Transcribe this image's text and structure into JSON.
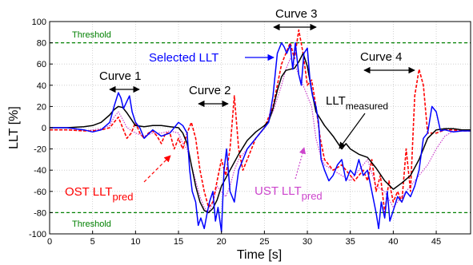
{
  "chart_data": {
    "type": "line",
    "xlabel": "Time [s]",
    "ylabel": "LLT [%]",
    "xlim": [
      0,
      49
    ],
    "ylim": [
      -100,
      100
    ],
    "xticks": [
      0,
      5,
      10,
      15,
      20,
      25,
      30,
      35,
      40,
      45
    ],
    "yticks": [
      100,
      80,
      60,
      40,
      20,
      0,
      -20,
      -40,
      -60,
      -80,
      -100
    ],
    "grid": true,
    "thresholds": [
      {
        "label": "Threshold",
        "value": 80
      },
      {
        "label": "Threshold",
        "value": -80
      }
    ],
    "series": [
      {
        "name": "LLT measured",
        "color": "#000000",
        "style": "solid",
        "x": [
          0,
          2,
          4,
          5,
          6,
          7,
          7.5,
          8,
          8.5,
          9,
          9.5,
          10,
          11,
          12,
          13,
          14,
          15,
          15.5,
          16,
          16.5,
          17,
          17.5,
          18,
          18.5,
          19,
          19.5,
          20,
          21,
          22,
          23,
          24,
          25,
          25.5,
          26,
          26.5,
          27,
          27.5,
          28,
          28.5,
          29,
          29.5,
          30,
          30.5,
          31,
          32,
          33,
          34,
          34.5,
          35,
          36,
          37,
          38,
          39,
          40,
          41,
          42,
          43,
          44,
          45,
          46,
          47,
          48,
          49
        ],
        "y": [
          0,
          0,
          1,
          2,
          5,
          12,
          17,
          20,
          19,
          14,
          8,
          2,
          1,
          2,
          2,
          1,
          0,
          -5,
          -15,
          -35,
          -55,
          -70,
          -78,
          -80,
          -76,
          -68,
          -55,
          -40,
          -25,
          -12,
          -4,
          2,
          6,
          18,
          35,
          48,
          54,
          55,
          56,
          62,
          70,
          58,
          35,
          15,
          2,
          -8,
          -20,
          -15,
          -20,
          -25,
          -28,
          -38,
          -50,
          -58,
          -52,
          -45,
          -30,
          -10,
          -2,
          -1,
          -1,
          -2,
          -2
        ]
      },
      {
        "name": "Selected LLT",
        "color": "#0000ff",
        "style": "solid",
        "x": [
          0,
          2,
          4,
          5,
          6,
          7,
          7.5,
          8,
          8.3,
          8.6,
          9,
          9.3,
          9.6,
          10,
          10.5,
          11,
          12,
          13,
          14,
          15,
          15.5,
          16,
          16.3,
          16.6,
          17,
          17.3,
          17.6,
          18,
          18.3,
          18.6,
          19,
          19.3,
          19.6,
          20,
          20.3,
          20.6,
          21,
          21.5,
          22,
          23,
          24,
          25,
          25.5,
          26,
          26.5,
          27,
          27.3,
          27.6,
          28,
          28.3,
          28.6,
          29,
          29.3,
          29.6,
          30,
          30.3,
          30.6,
          31,
          31.3,
          31.6,
          32,
          32.5,
          33,
          33.5,
          34,
          34.5,
          35,
          35.5,
          36,
          36.5,
          37,
          37.5,
          38,
          38.3,
          38.6,
          39,
          39.3,
          39.6,
          40,
          40.5,
          41,
          41.5,
          42,
          42.5,
          43,
          43.5,
          44,
          44.5,
          45,
          45.5,
          46,
          47,
          48,
          49
        ],
        "y": [
          0,
          0,
          -2,
          -4,
          -2,
          5,
          20,
          33,
          28,
          18,
          25,
          30,
          15,
          5,
          0,
          -10,
          -2,
          -8,
          -5,
          5,
          2,
          -5,
          -40,
          -60,
          -70,
          -92,
          -85,
          -95,
          -82,
          -70,
          -60,
          -88,
          -75,
          -98,
          -40,
          -20,
          -60,
          -70,
          -40,
          -20,
          -10,
          0,
          5,
          30,
          70,
          80,
          76,
          70,
          78,
          55,
          80,
          50,
          40,
          70,
          75,
          45,
          30,
          20,
          5,
          -30,
          -40,
          -50,
          -45,
          -35,
          -30,
          -50,
          -40,
          -45,
          -30,
          -45,
          -40,
          -60,
          -80,
          -95,
          -70,
          -85,
          -60,
          -88,
          -78,
          -65,
          -70,
          -60,
          -65,
          -55,
          -40,
          -10,
          -5,
          20,
          15,
          -3,
          -2,
          -4,
          -3,
          -3
        ]
      },
      {
        "name": "OST LLT pred",
        "color": "#ff0000",
        "style": "dashed",
        "x": [
          0,
          2,
          4,
          5,
          6,
          7,
          7.5,
          8,
          8.5,
          9,
          9.5,
          10,
          10.5,
          11,
          11.5,
          12,
          12.5,
          13,
          13.5,
          14,
          14.5,
          15,
          15.5,
          16,
          16.5,
          17,
          17.5,
          18,
          18.5,
          19,
          19.5,
          20,
          20.5,
          21,
          21.5,
          22,
          22.5,
          23,
          24,
          25,
          25.5,
          26,
          26.5,
          27,
          27.5,
          28,
          28.5,
          29,
          29.5,
          30,
          30.5,
          31,
          31.5,
          32,
          33,
          34,
          34.5,
          35,
          35.5,
          36,
          36.5,
          37,
          37.5,
          38,
          38.5,
          39,
          39.5,
          40,
          40.5,
          41,
          41.5,
          42,
          42.5,
          43,
          43.5,
          44,
          45,
          46,
          47,
          48,
          49
        ],
        "y": [
          -2,
          -2,
          -3,
          -3,
          -2,
          0,
          5,
          10,
          0,
          -10,
          -5,
          5,
          -5,
          -10,
          -5,
          -3,
          -8,
          -15,
          -5,
          -5,
          -20,
          -10,
          -20,
          -5,
          5,
          -10,
          -40,
          -60,
          -75,
          -70,
          -50,
          -30,
          -45,
          -20,
          30,
          -20,
          -40,
          -30,
          -10,
          0,
          10,
          20,
          40,
          60,
          70,
          80,
          65,
          92,
          70,
          40,
          45,
          20,
          -10,
          -30,
          -40,
          -35,
          -40,
          -45,
          -50,
          -45,
          -40,
          -50,
          -30,
          -60,
          -45,
          -80,
          -50,
          -70,
          -60,
          -70,
          -20,
          -60,
          30,
          55,
          40,
          -5,
          -5,
          -2,
          -2,
          -3,
          -3
        ]
      },
      {
        "name": "UST LLT pred",
        "color": "#cc44cc",
        "style": "dotted",
        "x": [
          0,
          2,
          4,
          5,
          6,
          7,
          7.5,
          8,
          8.5,
          9,
          10,
          11,
          12,
          13,
          14,
          15,
          15.5,
          16,
          16.5,
          17,
          17.5,
          18,
          18.5,
          19,
          19.5,
          20,
          20.5,
          21,
          21.5,
          22,
          23,
          24,
          25,
          26,
          27,
          27.5,
          28,
          28.5,
          29,
          29.5,
          30,
          30.5,
          31,
          31.5,
          32,
          33,
          34,
          35,
          36,
          37,
          38,
          39,
          40,
          41,
          42,
          43,
          44,
          45,
          46,
          47,
          48,
          49
        ],
        "y": [
          -2,
          -2,
          -3,
          -2,
          -1,
          2,
          10,
          15,
          8,
          0,
          -5,
          -8,
          -5,
          -5,
          -3,
          -5,
          -15,
          -20,
          -35,
          -50,
          -65,
          -75,
          -80,
          -70,
          -55,
          -60,
          -65,
          -55,
          -40,
          -30,
          -20,
          -10,
          0,
          15,
          40,
          55,
          65,
          60,
          50,
          40,
          30,
          20,
          -10,
          -25,
          -35,
          -40,
          -45,
          -50,
          -40,
          -30,
          -55,
          -60,
          -75,
          -65,
          -55,
          -45,
          -35,
          -20,
          -8,
          -3,
          -3,
          -3
        ]
      }
    ],
    "annotations": {
      "threshold_upper": "Threshold",
      "threshold_lower": "Threshold",
      "curve1": "Curve 1",
      "curve2": "Curve 2",
      "curve3": "Curve 3",
      "curve4": "Curve 4",
      "selected_llt": "Selected LLT",
      "llt_measured_main": "LLT",
      "llt_measured_sub": "measured",
      "ost_main": "OST LLT",
      "ost_sub": "pred",
      "ust_main": "UST LLT",
      "ust_sub": "pred"
    }
  }
}
